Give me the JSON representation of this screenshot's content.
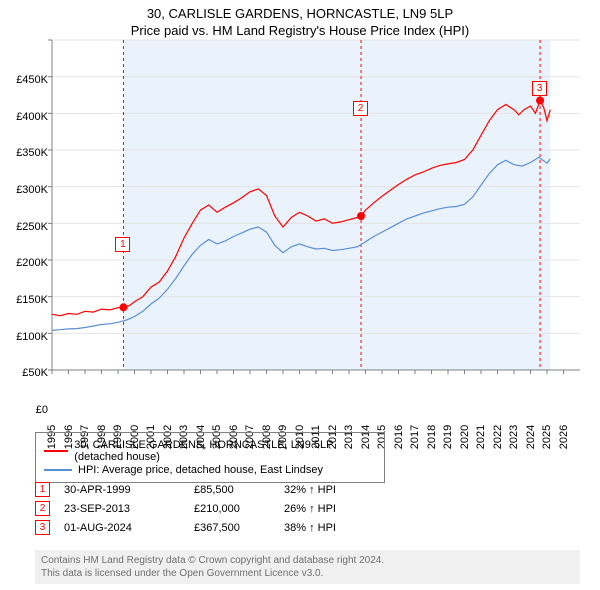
{
  "title_line1": "30, CARLISLE GARDENS, HORNCASTLE, LN9 5LP",
  "title_line2": "Price paid vs. HM Land Registry's House Price Index (HPI)",
  "chart": {
    "type": "line",
    "xlim": [
      1995,
      2027
    ],
    "ylim": [
      0,
      450000
    ],
    "ytick_step": 50000,
    "ytick_labels": [
      "£0",
      "£50K",
      "£100K",
      "£150K",
      "£200K",
      "£250K",
      "£300K",
      "£350K",
      "£400K",
      "£450K"
    ],
    "xtick_step": 1,
    "xtick_labels": [
      "1995",
      "1996",
      "1997",
      "1998",
      "1999",
      "2000",
      "2001",
      "2002",
      "2003",
      "2004",
      "2005",
      "2006",
      "2007",
      "2008",
      "2009",
      "2010",
      "2011",
      "2012",
      "2013",
      "2014",
      "2015",
      "2016",
      "2017",
      "2018",
      "2019",
      "2020",
      "2021",
      "2022",
      "2023",
      "2024",
      "2025",
      "2026"
    ],
    "background_color": "#ffffff",
    "band_color": "#eaf2fb",
    "grid_color": "#e5e5e5",
    "axis_color": "#808080",
    "band_start_x": 1999.33,
    "band_end_x": 2025.2,
    "series": [
      {
        "name": "price_paid",
        "label": "30, CARLISLE GARDENS, HORNCASTLE, LN9 5LP (detached house)",
        "color": "#ff0000",
        "line_width": 1.2,
        "data": [
          [
            1995,
            76000
          ],
          [
            1995.5,
            74000
          ],
          [
            1996,
            77000
          ],
          [
            1996.5,
            76000
          ],
          [
            1997,
            80000
          ],
          [
            1997.5,
            79000
          ],
          [
            1998,
            83000
          ],
          [
            1998.5,
            82000
          ],
          [
            1999,
            85000
          ],
          [
            1999.33,
            85500
          ],
          [
            1999.7,
            88000
          ],
          [
            2000,
            93000
          ],
          [
            2000.5,
            100000
          ],
          [
            2001,
            113000
          ],
          [
            2001.5,
            120000
          ],
          [
            2002,
            135000
          ],
          [
            2002.5,
            155000
          ],
          [
            2003,
            180000
          ],
          [
            2003.5,
            200000
          ],
          [
            2004,
            218000
          ],
          [
            2004.5,
            225000
          ],
          [
            2005,
            215000
          ],
          [
            2005.5,
            222000
          ],
          [
            2006,
            228000
          ],
          [
            2006.5,
            235000
          ],
          [
            2007,
            243000
          ],
          [
            2007.5,
            247000
          ],
          [
            2008,
            238000
          ],
          [
            2008.5,
            210000
          ],
          [
            2009,
            195000
          ],
          [
            2009.5,
            208000
          ],
          [
            2010,
            215000
          ],
          [
            2010.5,
            210000
          ],
          [
            2011,
            203000
          ],
          [
            2011.5,
            206000
          ],
          [
            2012,
            200000
          ],
          [
            2012.5,
            202000
          ],
          [
            2013,
            205000
          ],
          [
            2013.5,
            208000
          ],
          [
            2013.73,
            210000
          ],
          [
            2014,
            218000
          ],
          [
            2014.5,
            228000
          ],
          [
            2015,
            237000
          ],
          [
            2015.5,
            245000
          ],
          [
            2016,
            253000
          ],
          [
            2016.5,
            260000
          ],
          [
            2017,
            266000
          ],
          [
            2017.5,
            270000
          ],
          [
            2018,
            275000
          ],
          [
            2018.5,
            279000
          ],
          [
            2019,
            281000
          ],
          [
            2019.5,
            283000
          ],
          [
            2020,
            287000
          ],
          [
            2020.5,
            300000
          ],
          [
            2021,
            320000
          ],
          [
            2021.5,
            340000
          ],
          [
            2022,
            355000
          ],
          [
            2022.5,
            362000
          ],
          [
            2023,
            355000
          ],
          [
            2023.3,
            348000
          ],
          [
            2023.6,
            355000
          ],
          [
            2024,
            360000
          ],
          [
            2024.3,
            350000
          ],
          [
            2024.58,
            367500
          ],
          [
            2024.8,
            358000
          ],
          [
            2025,
            340000
          ],
          [
            2025.2,
            355000
          ]
        ]
      },
      {
        "name": "hpi",
        "label": "HPI: Average price, detached house, East Lindsey",
        "color": "#5a8fd6",
        "line_width": 1.2,
        "data": [
          [
            1995,
            54000
          ],
          [
            1995.5,
            55000
          ],
          [
            1996,
            56000
          ],
          [
            1996.5,
            56500
          ],
          [
            1997,
            58000
          ],
          [
            1997.5,
            60000
          ],
          [
            1998,
            62000
          ],
          [
            1998.5,
            63000
          ],
          [
            1999,
            65000
          ],
          [
            1999.5,
            68000
          ],
          [
            2000,
            73000
          ],
          [
            2000.5,
            80000
          ],
          [
            2001,
            90000
          ],
          [
            2001.5,
            98000
          ],
          [
            2002,
            110000
          ],
          [
            2002.5,
            125000
          ],
          [
            2003,
            142000
          ],
          [
            2003.5,
            158000
          ],
          [
            2004,
            170000
          ],
          [
            2004.5,
            178000
          ],
          [
            2005,
            172000
          ],
          [
            2005.5,
            176000
          ],
          [
            2006,
            182000
          ],
          [
            2006.5,
            187000
          ],
          [
            2007,
            192000
          ],
          [
            2007.5,
            195000
          ],
          [
            2008,
            188000
          ],
          [
            2008.5,
            170000
          ],
          [
            2009,
            160000
          ],
          [
            2009.5,
            168000
          ],
          [
            2010,
            172000
          ],
          [
            2010.5,
            168000
          ],
          [
            2011,
            165000
          ],
          [
            2011.5,
            166000
          ],
          [
            2012,
            163000
          ],
          [
            2012.5,
            164000
          ],
          [
            2013,
            166000
          ],
          [
            2013.5,
            168000
          ],
          [
            2014,
            175000
          ],
          [
            2014.5,
            182000
          ],
          [
            2015,
            188000
          ],
          [
            2015.5,
            194000
          ],
          [
            2016,
            200000
          ],
          [
            2016.5,
            206000
          ],
          [
            2017,
            210000
          ],
          [
            2017.5,
            214000
          ],
          [
            2018,
            217000
          ],
          [
            2018.5,
            220000
          ],
          [
            2019,
            222000
          ],
          [
            2019.5,
            223000
          ],
          [
            2020,
            226000
          ],
          [
            2020.5,
            236000
          ],
          [
            2021,
            252000
          ],
          [
            2021.5,
            268000
          ],
          [
            2022,
            280000
          ],
          [
            2022.5,
            286000
          ],
          [
            2023,
            280000
          ],
          [
            2023.5,
            278000
          ],
          [
            2024,
            283000
          ],
          [
            2024.5,
            290000
          ],
          [
            2025,
            282000
          ],
          [
            2025.2,
            288000
          ]
        ]
      }
    ],
    "markers": [
      {
        "badge": "1",
        "x": 1999.33,
        "y": 85500,
        "label_dy": -70
      },
      {
        "badge": "2",
        "x": 2013.73,
        "y": 210000,
        "label_dy": -115
      },
      {
        "badge": "3",
        "x": 2024.58,
        "y": 367500,
        "label_dy": -20
      }
    ],
    "marker_color": "#ff0000",
    "marker_radius": 4,
    "marker_line_color": "#ff0000",
    "marker_line_dash": "3,3"
  },
  "legend": {
    "border_color": "#808080",
    "items": [
      {
        "color": "#ff0000",
        "label": "30, CARLISLE GARDENS, HORNCASTLE, LN9 5LP (detached house)"
      },
      {
        "color": "#5a8fd6",
        "label": "HPI: Average price, detached house, East Lindsey"
      }
    ]
  },
  "sales": [
    {
      "badge": "1",
      "date": "30-APR-1999",
      "price": "£85,500",
      "pct": "32% ↑ HPI"
    },
    {
      "badge": "2",
      "date": "23-SEP-2013",
      "price": "£210,000",
      "pct": "26% ↑ HPI"
    },
    {
      "badge": "3",
      "date": "01-AUG-2024",
      "price": "£367,500",
      "pct": "38% ↑ HPI"
    }
  ],
  "footer_line1": "Contains HM Land Registry data © Crown copyright and database right 2024.",
  "footer_line2": "This data is licensed under the Open Government Licence v3.0."
}
